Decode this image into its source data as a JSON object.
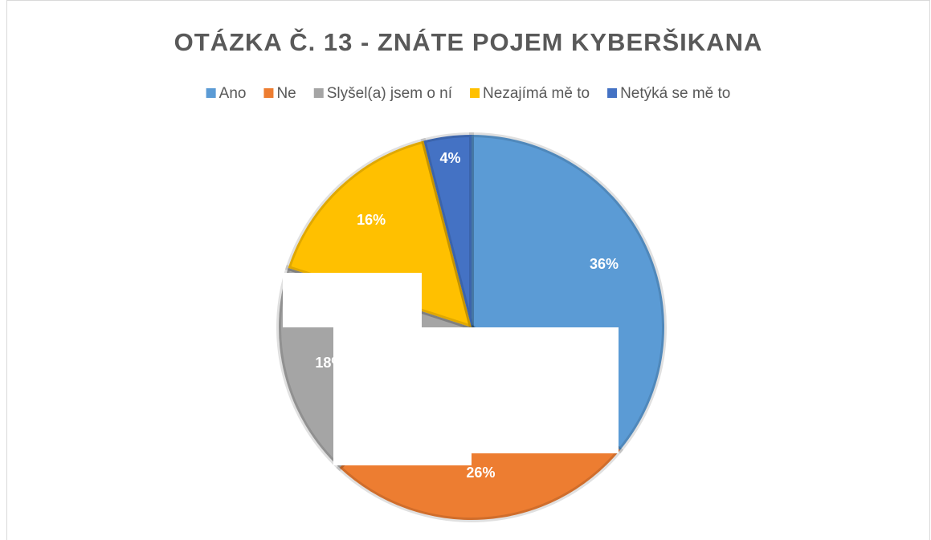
{
  "chart_data": {
    "type": "pie",
    "title": "OTÁZKA Č. 13 - ZNÁTE POJEM KYBERŠIKANA",
    "categories": [
      "Ano",
      "Ne",
      "Slyšel(a) jsem o ní",
      "Nezajímá mě to",
      "Netýká se mě to"
    ],
    "values": [
      36,
      26,
      18,
      16,
      4
    ],
    "value_labels": [
      "36%",
      "26%",
      "18%",
      "16%",
      "4%"
    ],
    "colors": [
      "#5b9bd5",
      "#ed7d31",
      "#a5a5a5",
      "#ffc000",
      "#4472c4"
    ],
    "legend": "top"
  }
}
